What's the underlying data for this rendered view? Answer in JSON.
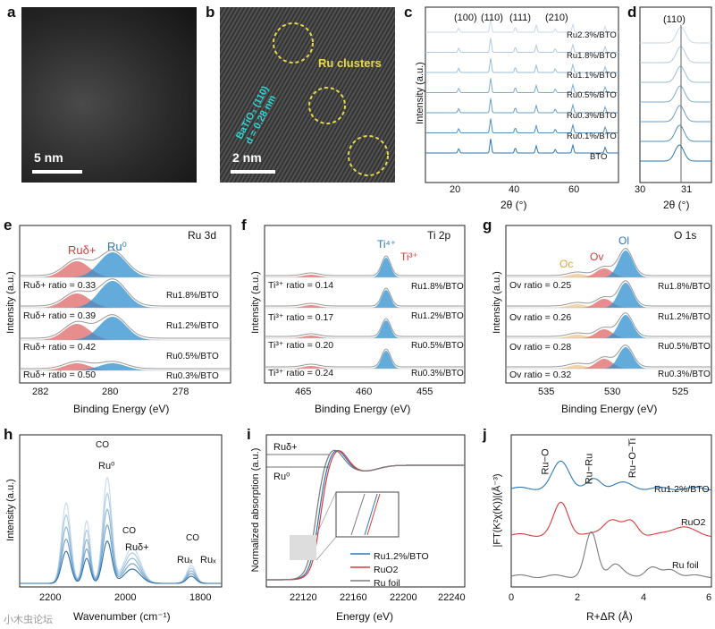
{
  "panels": {
    "a": {
      "label": "a",
      "scale": "5 nm"
    },
    "b": {
      "label": "b",
      "scale": "2 nm",
      "annotation": "Ru clusters",
      "lattice_line1": "BaTiO₃ (110)",
      "lattice_line2": "d = 0.28 nm"
    },
    "c": {
      "label": "c",
      "ylabel": "Intensity (a.u.)",
      "xlabel": "2θ (°)",
      "xticks": [
        "20",
        "40",
        "60"
      ],
      "peaks": [
        "(100)",
        "(110)",
        "(111)",
        "(210)"
      ],
      "series": [
        "Ru2.3%/BTO",
        "Ru1.8%/BTO",
        "Ru1.1%/BTO",
        "Ru0.5%/BTO",
        "Ru0.3%/BTO",
        "Ru0.1%/BTO",
        "BTO"
      ]
    },
    "d": {
      "label": "d",
      "xlabel": "2θ (°)",
      "xticks": [
        "30",
        "31"
      ],
      "peak": "(110)"
    },
    "e": {
      "label": "e",
      "title": "Ru 3d",
      "ylabel": "Intensity (a.u.)",
      "xlabel": "Binding Energy (eV)",
      "xticks": [
        "282",
        "280",
        "278"
      ],
      "peak1": "Ruδ+",
      "peak2": "Ru⁰",
      "rows": [
        {
          "ratio": "Ruδ+ ratio = 0.33",
          "sample": "Ru1.8%/BTO"
        },
        {
          "ratio": "Ruδ+ ratio = 0.39",
          "sample": "Ru1.2%/BTO"
        },
        {
          "ratio": "Ruδ+ ratio = 0.42",
          "sample": "Ru0.5%/BTO"
        },
        {
          "ratio": "Ruδ+ ratio = 0.50",
          "sample": "Ru0.3%/BTO"
        }
      ]
    },
    "f": {
      "label": "f",
      "title": "Ti 2p",
      "ylabel": "Intensity (a.u.)",
      "xlabel": "Binding Energy (eV)",
      "xticks": [
        "465",
        "460",
        "455"
      ],
      "peak1": "Ti⁴⁺",
      "peak2": "Ti³⁺",
      "rows": [
        {
          "ratio": "Ti³⁺ ratio = 0.14",
          "sample": "Ru1.8%/BTO"
        },
        {
          "ratio": "Ti³⁺ ratio = 0.17",
          "sample": "Ru1.2%/BTO"
        },
        {
          "ratio": "Ti³⁺ ratio = 0.20",
          "sample": "Ru0.5%/BTO"
        },
        {
          "ratio": "Ti³⁺ ratio = 0.24",
          "sample": "Ru0.3%/BTO"
        }
      ]
    },
    "g": {
      "label": "g",
      "title": "O 1s",
      "ylabel": "Intensity (a.u.)",
      "xlabel": "Binding Energy (eV)",
      "xticks": [
        "535",
        "530",
        "525"
      ],
      "peak1": "Oc",
      "peak2": "Ov",
      "peak3": "Ol",
      "rows": [
        {
          "ratio": "Ov ratio = 0.25",
          "sample": "Ru1.8%/BTO"
        },
        {
          "ratio": "Ov ratio = 0.26",
          "sample": "Ru1.2%/BTO"
        },
        {
          "ratio": "Ov ratio = 0.28",
          "sample": "Ru0.5%/BTO"
        },
        {
          "ratio": "Ov ratio = 0.32",
          "sample": "Ru0.3%/BTO"
        }
      ]
    },
    "h": {
      "label": "h",
      "ylabel": "Intensity (a.u.)",
      "xlabel": "Wavenumber (cm⁻¹)",
      "xticks": [
        "2200",
        "2000",
        "1800"
      ],
      "ann1": "Ru⁰",
      "ann2": "Ruδ+",
      "ann3a": "Ruₓ",
      "ann3b": "Ruₓ",
      "co": "CO"
    },
    "i": {
      "label": "i",
      "ylabel": "Normalized absorption (a.u.)",
      "xlabel": "Energy (eV)",
      "xticks": [
        "22120",
        "22160",
        "22200",
        "22240"
      ],
      "lvl1": "Ruδ+",
      "lvl2": "Ru⁰",
      "legend": [
        "Ru1.2%/BTO",
        "RuO2",
        "Ru foil"
      ]
    },
    "j": {
      "label": "j",
      "ylabel": "|FT(K²χ(K))|(Å⁻³)",
      "xlabel": "R+ΔR (Å)",
      "xticks": [
        "0",
        "2",
        "4",
        "6"
      ],
      "peaks": [
        "Ru−O",
        "Ru−Ru",
        "Ru−O−Ti"
      ],
      "series": [
        "Ru1.2%/BTO",
        "RuO2",
        "Ru foil"
      ]
    }
  },
  "watermark": "小木虫论坛",
  "colors": {
    "blue": "#2a78b8",
    "red": "#d93b3b",
    "gray": "#7a7a7a",
    "lightblue": "#a9c9e4",
    "peak_red": "#e46a6a",
    "peak_blue": "#2d8fcf",
    "yellow": "#e8d94a",
    "cyan": "#2fd6d6"
  }
}
